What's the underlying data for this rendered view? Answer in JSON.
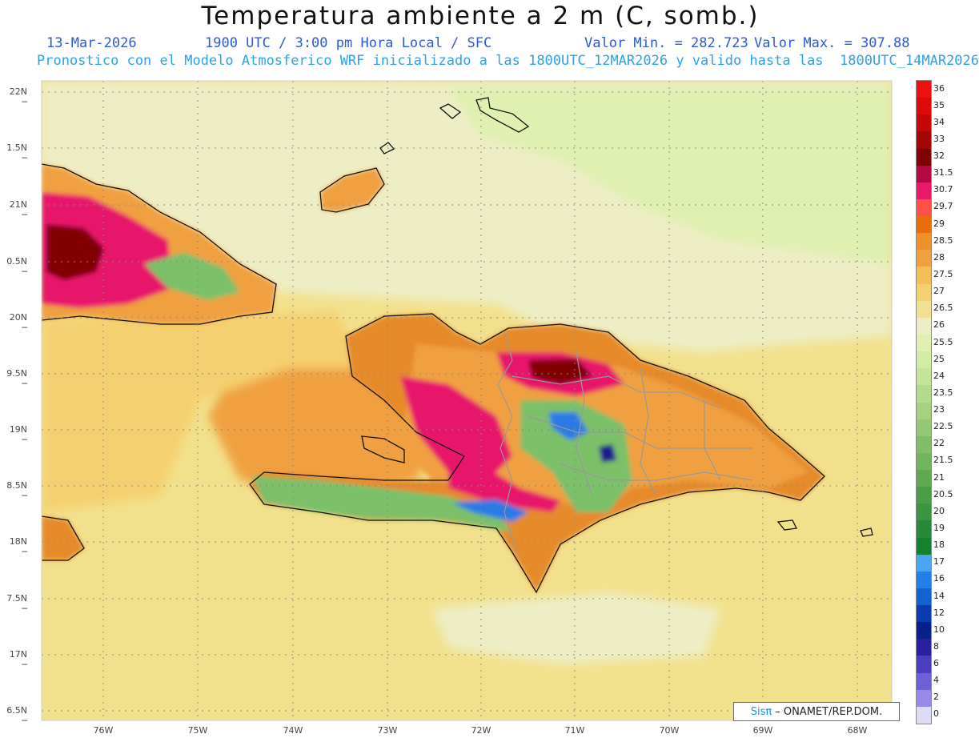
{
  "title": "Temperatura ambiente a 2 m (C, somb.)",
  "header": {
    "date": "13-Mar-2026",
    "time": "1900 UTC / 3:00 pm Hora Local / SFC",
    "min": "Valor Min. = 282.723",
    "max": "Valor Max. = 307.88",
    "run": "Pronostico con el Modelo Atmosferico WRF inicializado a las 1800UTC_12MAR2026 y valido hasta las  1800UTC_14MAR2026"
  },
  "lat_labels": [
    "22N",
    "1.5N",
    "21N",
    "0.5N",
    "20N",
    "9.5N",
    "19N",
    "8.5N",
    "18N",
    "7.5N",
    "17N",
    "6.5N"
  ],
  "lon_labels": [
    "76W",
    "75W",
    "74W",
    "73W",
    "72W",
    "71W",
    "70W",
    "69W",
    "68W"
  ],
  "colorbar": {
    "labels": [
      "36",
      "35",
      "34",
      "33",
      "32",
      "31.5",
      "30.7",
      "29.7",
      "29",
      "28.5",
      "28",
      "27.5",
      "27",
      "26.5",
      "26",
      "25.5",
      "25",
      "24",
      "23.5",
      "23",
      "22.5",
      "22",
      "21.5",
      "21",
      "20.5",
      "20",
      "19",
      "18",
      "17",
      "16",
      "14",
      "12",
      "10",
      "8",
      "6",
      "4",
      "2",
      "0"
    ],
    "colors": [
      "#ee1010",
      "#dd0a0a",
      "#c40808",
      "#a30505",
      "#800204",
      "#b00a40",
      "#e8186a",
      "#ff5048",
      "#e86e0c",
      "#f0902c",
      "#f0a040",
      "#f5bf58",
      "#f5d070",
      "#f2e090",
      "#eeeec6",
      "#dff0b0",
      "#d2eca4",
      "#c4e498",
      "#b4da8c",
      "#a6d280",
      "#94c874",
      "#82be68",
      "#70b45c",
      "#5ea850",
      "#4c9e46",
      "#3a9440",
      "#268a3a",
      "#148030",
      "#4aa6f0",
      "#2080e8",
      "#1262d2",
      "#0a3cae",
      "#08208a",
      "#2820a0",
      "#4c3cc0",
      "#6e60d6",
      "#9888e8",
      "#dcdcf6"
    ]
  },
  "credit": {
    "sis": "Sisπ",
    "text": "– ONAMET/REP.DOM."
  },
  "map_colors": {
    "sea_warm": "#f2e18c",
    "sea_mid": "#f5d070",
    "sea_light": "#eeeec6",
    "green_pale": "#dff0b0",
    "orange": "#f0a040",
    "orange_dark": "#e68a2c",
    "red": "#e8186a",
    "maroon": "#800204",
    "green": "#7cc06a",
    "green_dark": "#3a9a44",
    "blue": "#2a7ae6",
    "navy": "#1a1a8a",
    "coast": "#111111",
    "border": "#999999"
  }
}
